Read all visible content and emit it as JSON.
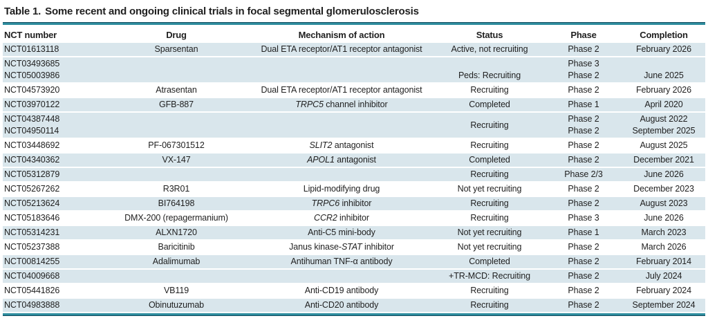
{
  "title": {
    "label": "Table 1.",
    "text": "Some recent and ongoing clinical trials in focal segmental glomerulosclerosis"
  },
  "colors": {
    "rule_teal": "#2e8d9e",
    "rule_dark": "#0e4a5e",
    "row_shade": "#d9e6ec",
    "text_color": "#1f1f1f"
  },
  "table": {
    "columns": [
      {
        "key": "nct",
        "label": "NCT number",
        "align": "left"
      },
      {
        "key": "drug",
        "label": "Drug",
        "align": "center"
      },
      {
        "key": "mech",
        "label": "Mechanism of action",
        "align": "center"
      },
      {
        "key": "status",
        "label": "Status",
        "align": "center"
      },
      {
        "key": "phase",
        "label": "Phase",
        "align": "center"
      },
      {
        "key": "completion",
        "label": "Completion",
        "align": "center"
      }
    ],
    "rows": [
      {
        "shaded": true,
        "nct": [
          "NCT01613118"
        ],
        "drug": [
          "Sparsentan"
        ],
        "mech": [
          {
            "t": "Dual ETA receptor/AT1 receptor antagonist",
            "i": false
          }
        ],
        "status": [
          "Active, not recruiting"
        ],
        "phase": [
          "Phase 2"
        ],
        "completion": [
          "February 2026"
        ]
      },
      {
        "shaded": true,
        "nct": [
          "NCT03493685",
          "NCT05003986"
        ],
        "drug": [
          ""
        ],
        "mech": [],
        "status": [
          "",
          "Peds: Recruiting"
        ],
        "phase": [
          "Phase 3",
          "Phase 2"
        ],
        "completion": [
          "",
          "June 2025"
        ]
      },
      {
        "shaded": false,
        "nct": [
          "NCT04573920"
        ],
        "drug": [
          "Atrasentan"
        ],
        "mech": [
          {
            "t": "Dual ETA receptor/AT1 receptor antagonist",
            "i": false
          }
        ],
        "status": [
          "Recruiting"
        ],
        "phase": [
          "Phase 2"
        ],
        "completion": [
          "February 2026"
        ]
      },
      {
        "shaded": true,
        "nct": [
          "NCT03970122"
        ],
        "drug": [
          "GFB-887"
        ],
        "mech": [
          {
            "t": "TRPC5",
            "i": true
          },
          {
            "t": " channel inhibitor",
            "i": false
          }
        ],
        "status": [
          "Completed"
        ],
        "phase": [
          "Phase 1"
        ],
        "completion": [
          "April 2020"
        ]
      },
      {
        "shaded": true,
        "nct": [
          "NCT04387448",
          "NCT04950114"
        ],
        "drug": [
          ""
        ],
        "mech": [],
        "status": [
          "Recruiting"
        ],
        "phase": [
          "Phase 2",
          "Phase 2"
        ],
        "completion": [
          "August 2022",
          "September 2025"
        ]
      },
      {
        "shaded": false,
        "nct": [
          "NCT03448692"
        ],
        "drug": [
          "PF-067301512"
        ],
        "mech": [
          {
            "t": "SLIT2",
            "i": true
          },
          {
            "t": " antagonist",
            "i": false
          }
        ],
        "status": [
          "Recruiting"
        ],
        "phase": [
          "Phase 2"
        ],
        "completion": [
          "August 2025"
        ]
      },
      {
        "shaded": true,
        "nct": [
          "NCT04340362"
        ],
        "drug": [
          "VX-147"
        ],
        "mech": [
          {
            "t": "APOL1",
            "i": true
          },
          {
            "t": " antagonist",
            "i": false
          }
        ],
        "status": [
          "Completed"
        ],
        "phase": [
          "Phase 2"
        ],
        "completion": [
          "December 2021"
        ]
      },
      {
        "shaded": true,
        "nct": [
          "NCT05312879"
        ],
        "drug": [
          ""
        ],
        "mech": [],
        "status": [
          "Recruiting"
        ],
        "phase": [
          "Phase 2/3"
        ],
        "completion": [
          "June 2026"
        ]
      },
      {
        "shaded": false,
        "nct": [
          "NCT05267262"
        ],
        "drug": [
          "R3R01"
        ],
        "mech": [
          {
            "t": "Lipid-modifying drug",
            "i": false
          }
        ],
        "status": [
          "Not yet recruiting"
        ],
        "phase": [
          "Phase 2"
        ],
        "completion": [
          "December 2023"
        ]
      },
      {
        "shaded": true,
        "nct": [
          "NCT05213624"
        ],
        "drug": [
          "BI764198"
        ],
        "mech": [
          {
            "t": "TRPC6",
            "i": true
          },
          {
            "t": " inhibitor",
            "i": false
          }
        ],
        "status": [
          "Recruiting"
        ],
        "phase": [
          "Phase 2"
        ],
        "completion": [
          "August 2023"
        ]
      },
      {
        "shaded": false,
        "nct": [
          "NCT05183646"
        ],
        "drug": [
          "DMX-200 (repagermanium)"
        ],
        "mech": [
          {
            "t": "CCR2",
            "i": true
          },
          {
            "t": " inhibitor",
            "i": false
          }
        ],
        "status": [
          "Recruiting"
        ],
        "phase": [
          "Phase 3"
        ],
        "completion": [
          "June 2026"
        ]
      },
      {
        "shaded": true,
        "nct": [
          "NCT05314231"
        ],
        "drug": [
          "ALXN1720"
        ],
        "mech": [
          {
            "t": "Anti-C5 mini-body",
            "i": false
          }
        ],
        "status": [
          "Not yet recruiting"
        ],
        "phase": [
          "Phase 1"
        ],
        "completion": [
          "March 2023"
        ]
      },
      {
        "shaded": false,
        "nct": [
          "NCT05237388"
        ],
        "drug": [
          "Baricitinib"
        ],
        "mech": [
          {
            "t": "Janus kinase-",
            "i": false
          },
          {
            "t": "STAT",
            "i": true
          },
          {
            "t": " inhibitor",
            "i": false
          }
        ],
        "status": [
          "Not yet recruiting"
        ],
        "phase": [
          "Phase 2"
        ],
        "completion": [
          "March 2026"
        ]
      },
      {
        "shaded": true,
        "nct": [
          "NCT00814255"
        ],
        "drug": [
          "Adalimumab"
        ],
        "mech": [
          {
            "t": "Antihuman TNF-α antibody",
            "i": false
          }
        ],
        "status": [
          "Completed"
        ],
        "phase": [
          "Phase 2"
        ],
        "completion": [
          "February 2014"
        ]
      },
      {
        "shaded": true,
        "nct": [
          "NCT04009668"
        ],
        "drug": [
          ""
        ],
        "mech": [],
        "status": [
          "+TR-MCD: Recruiting"
        ],
        "phase": [
          "Phase 2"
        ],
        "completion": [
          "July 2024"
        ]
      },
      {
        "shaded": false,
        "nct": [
          "NCT05441826"
        ],
        "drug": [
          "VB119"
        ],
        "mech": [
          {
            "t": "Anti-CD19 antibody",
            "i": false
          }
        ],
        "status": [
          "Recruiting"
        ],
        "phase": [
          "Phase 2"
        ],
        "completion": [
          "February 2024"
        ]
      },
      {
        "shaded": true,
        "nct": [
          "NCT04983888"
        ],
        "drug": [
          "Obinutuzumab"
        ],
        "mech": [
          {
            "t": "Anti-CD20 antibody",
            "i": false
          }
        ],
        "status": [
          "Recruiting"
        ],
        "phase": [
          "Phase 2"
        ],
        "completion": [
          "September 2024"
        ]
      }
    ]
  }
}
